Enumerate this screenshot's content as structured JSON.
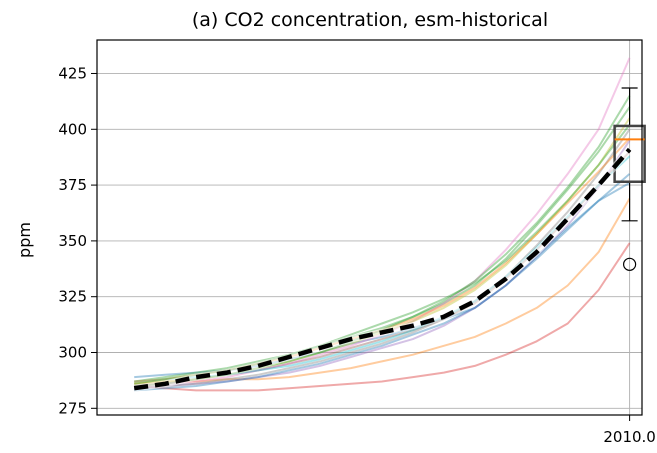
{
  "chart_data": {
    "type": "line",
    "title": "(a) CO2 concentration,  esm-historical",
    "xlabel": "",
    "ylabel": "ppm",
    "ylim": [
      272,
      440
    ],
    "yticks": [
      275,
      300,
      325,
      350,
      375,
      400,
      425
    ],
    "ytick_labels": [
      "275",
      "300",
      "325",
      "350",
      "375",
      "400",
      "425"
    ],
    "xlim": [
      1838,
      2014
    ],
    "xticks": [
      2010
    ],
    "xtick_labels": [
      "2010.0"
    ],
    "grid": true,
    "x": [
      1850,
      1860,
      1870,
      1880,
      1890,
      1900,
      1910,
      1920,
      1930,
      1940,
      1950,
      1960,
      1970,
      1980,
      1990,
      2000,
      2010
    ],
    "ensemble_members": [
      {
        "color": "#1f77b4",
        "values": [
          289,
          290,
          291,
          292,
          294,
          297,
          300,
          304,
          307,
          311,
          315,
          320,
          330,
          342,
          355,
          368,
          380
        ]
      },
      {
        "color": "#ff7f0e",
        "values": [
          286,
          287,
          287,
          288,
          288,
          289,
          291,
          293,
          296,
          299,
          303,
          307,
          313,
          320,
          330,
          345,
          369
        ]
      },
      {
        "color": "#2ca02c",
        "values": [
          287,
          289,
          291,
          293,
          296,
          299,
          303,
          307,
          311,
          316,
          322,
          330,
          342,
          357,
          373,
          390,
          410
        ]
      },
      {
        "color": "#d62728",
        "values": [
          285,
          284,
          283,
          283,
          283,
          284,
          285,
          286,
          287,
          289,
          291,
          294,
          299,
          305,
          313,
          328,
          349
        ]
      },
      {
        "color": "#9467bd",
        "values": [
          284,
          285,
          286,
          287,
          289,
          291,
          294,
          298,
          302,
          306,
          312,
          320,
          330,
          343,
          357,
          374,
          395
        ]
      },
      {
        "color": "#8c564b",
        "values": [
          285,
          286,
          288,
          290,
          292,
          295,
          298,
          302,
          306,
          310,
          315,
          322,
          333,
          346,
          360,
          375,
          390
        ]
      },
      {
        "color": "#e377c2",
        "values": [
          285,
          286,
          287,
          289,
          292,
          295,
          299,
          303,
          308,
          314,
          322,
          332,
          346,
          362,
          380,
          400,
          432
        ]
      },
      {
        "color": "#7f7f7f",
        "values": [
          284,
          285,
          286,
          288,
          290,
          293,
          296,
          300,
          304,
          309,
          315,
          323,
          334,
          348,
          363,
          380,
          400
        ]
      },
      {
        "color": "#bcbd22",
        "values": [
          286,
          287,
          288,
          290,
          293,
          296,
          300,
          304,
          309,
          314,
          320,
          328,
          339,
          353,
          368,
          384,
          405
        ]
      },
      {
        "color": "#17becf",
        "values": [
          287,
          288,
          289,
          290,
          292,
          294,
          297,
          301,
          305,
          310,
          316,
          323,
          334,
          347,
          361,
          375,
          388
        ]
      },
      {
        "color": "#1f77b4",
        "values": [
          283,
          284,
          285,
          287,
          289,
          292,
          295,
          299,
          303,
          308,
          313,
          320,
          330,
          343,
          356,
          368,
          376
        ]
      },
      {
        "color": "#ff7f0e",
        "values": [
          287,
          288,
          290,
          292,
          295,
          298,
          302,
          306,
          310,
          315,
          321,
          329,
          340,
          353,
          367,
          381,
          396
        ]
      },
      {
        "color": "#2ca02c",
        "values": [
          285,
          286,
          288,
          290,
          293,
          296,
          300,
          305,
          310,
          316,
          323,
          332,
          344,
          358,
          374,
          392,
          415
        ]
      },
      {
        "color": "#2ca02c",
        "values": [
          286,
          288,
          290,
          292,
          295,
          299,
          303,
          308,
          313,
          318,
          324,
          331,
          341,
          354,
          368,
          384,
          402
        ]
      }
    ],
    "mean_series": {
      "color": "#000000",
      "values": [
        284,
        286,
        289,
        291,
        294,
        298,
        302,
        306,
        309,
        312,
        316,
        323,
        333,
        345,
        360,
        375,
        391
      ]
    },
    "boxplot": {
      "x": 2010,
      "whisker_low": 359,
      "q1": 376.5,
      "median": 395.5,
      "q3": 401.5,
      "whisker_high": 418.5,
      "outliers": [
        339.5
      ],
      "box_color": "#444444",
      "median_color": "#ff7f0e"
    }
  }
}
